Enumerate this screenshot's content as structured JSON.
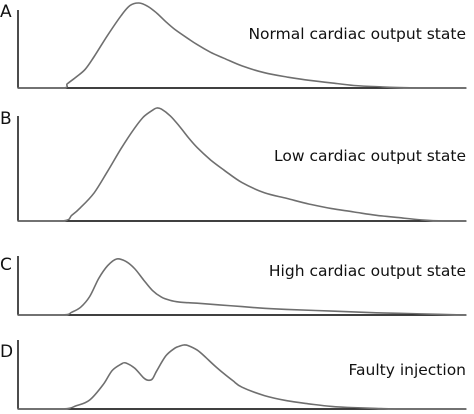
{
  "chart_data": [
    {
      "type": "line",
      "panel_label": "A",
      "title": "Normal cardiac output state",
      "xlabel": "",
      "ylabel": "",
      "grid": false,
      "legend": "none",
      "color": "#6f6f6f",
      "xlim": [
        0,
        100
      ],
      "ylim": [
        0,
        100
      ],
      "series": [
        {
          "x": [
            0,
            10,
            11,
            13,
            15,
            17,
            20,
            23,
            25,
            27,
            29,
            31,
            33,
            35,
            38,
            40,
            43,
            46,
            50,
            55,
            60,
            65,
            70,
            75,
            80,
            85,
            90,
            95,
            100
          ],
          "y": [
            0,
            0,
            5,
            13,
            22,
            37,
            62,
            85,
            97,
            100,
            96,
            88,
            78,
            69,
            58,
            51,
            42,
            35,
            26,
            18,
            13,
            9,
            6,
            3,
            1.5,
            0.5,
            0,
            0,
            0
          ]
        }
      ]
    },
    {
      "type": "line",
      "panel_label": "B",
      "title": "Low cardiac output state",
      "xlabel": "",
      "ylabel": "",
      "grid": false,
      "legend": "none",
      "color": "#6f6f6f",
      "xlim": [
        0,
        100
      ],
      "ylim": [
        0,
        100
      ],
      "series": [
        {
          "x": [
            0,
            10,
            12,
            14,
            17,
            20,
            23,
            26,
            28,
            30,
            31,
            32,
            34,
            36,
            38,
            40,
            43,
            46,
            50,
            55,
            60,
            65,
            70,
            75,
            80,
            85,
            90,
            95,
            100
          ],
          "y": [
            0,
            0,
            5,
            12,
            25,
            44,
            64,
            82,
            92,
            98,
            100,
            99,
            93,
            84,
            74,
            65,
            54,
            45,
            34,
            25,
            20,
            15,
            11,
            8,
            5,
            3,
            1,
            0,
            0
          ]
        }
      ]
    },
    {
      "type": "line",
      "panel_label": "C",
      "title": "High cardiac output state",
      "xlabel": "",
      "ylabel": "",
      "grid": false,
      "legend": "none",
      "color": "#6f6f6f",
      "xlim": [
        0,
        100
      ],
      "ylim": [
        0,
        100
      ],
      "series": [
        {
          "x": [
            0,
            10,
            12,
            14,
            16,
            18,
            20,
            22,
            24,
            26,
            28,
            30,
            32,
            34,
            36,
            38,
            40,
            45,
            50,
            55,
            60,
            70,
            80,
            90,
            100
          ],
          "y": [
            0,
            0,
            5,
            14,
            33,
            65,
            88,
            100,
            96,
            83,
            63,
            44,
            32,
            26,
            23,
            22,
            21,
            18,
            15,
            12,
            10,
            7,
            4,
            2,
            0
          ]
        }
      ]
    },
    {
      "type": "line",
      "panel_label": "D",
      "title": "Faulty injection",
      "xlabel": "",
      "ylabel": "",
      "grid": false,
      "legend": "none",
      "color": "#6f6f6f",
      "xlim": [
        0,
        100
      ],
      "ylim": [
        0,
        100
      ],
      "series": [
        {
          "x": [
            0,
            10,
            13,
            16,
            19,
            21,
            23,
            24,
            26,
            28,
            29,
            30,
            31,
            33,
            35,
            36,
            37,
            38,
            40,
            42,
            44,
            46,
            48,
            50,
            55,
            60,
            65,
            70,
            75,
            80,
            85,
            90,
            95,
            100
          ],
          "y": [
            0,
            0,
            5,
            14,
            38,
            60,
            70,
            72,
            64,
            49,
            45,
            47,
            60,
            83,
            95,
            98,
            100,
            99,
            92,
            80,
            67,
            55,
            44,
            34,
            21,
            13,
            8,
            4,
            2,
            1,
            0,
            0,
            0,
            0
          ]
        }
      ]
    }
  ]
}
